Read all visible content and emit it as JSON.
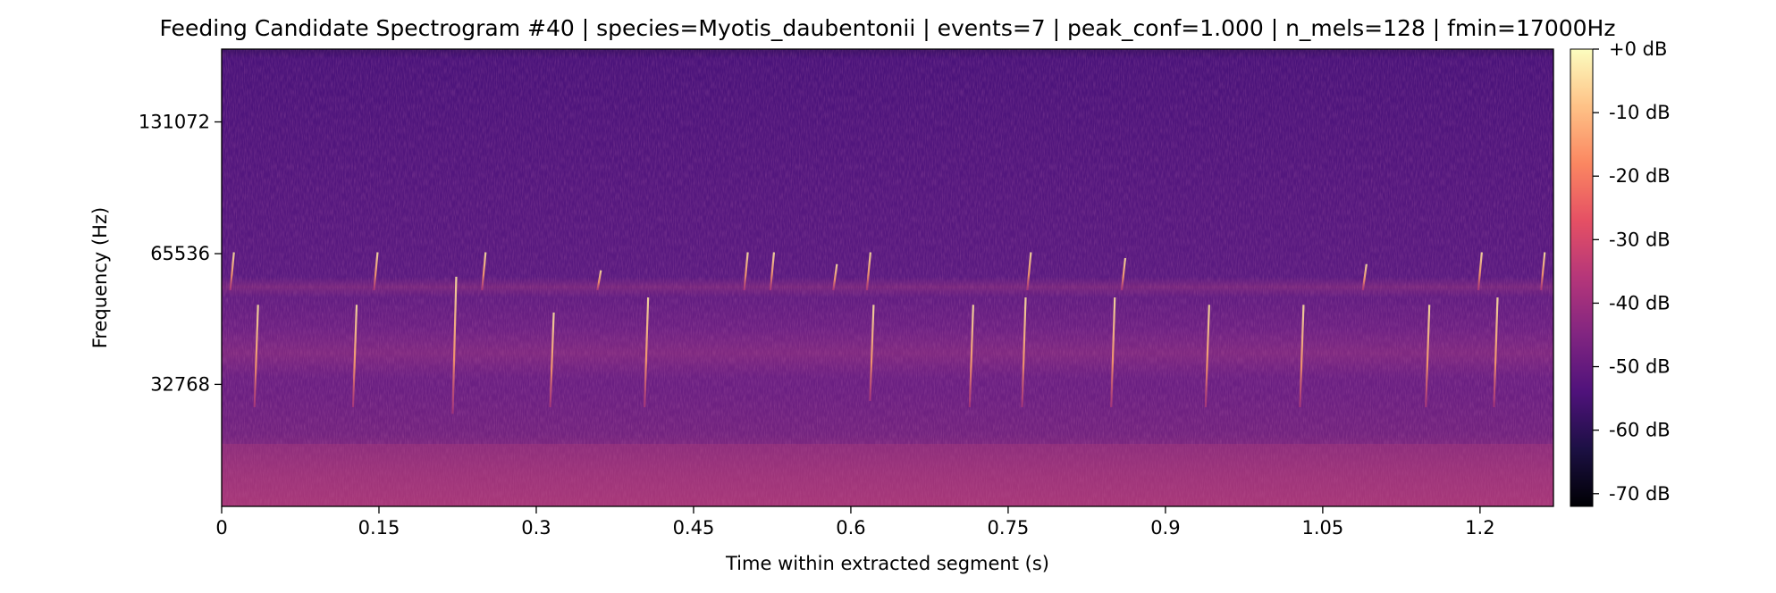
{
  "chart_data": {
    "type": "heatmap",
    "title": "Feeding Candidate Spectrogram #40 | species=Myotis_daubentonii | events=7 | peak_conf=1.000 | n_mels=128 | fmin=17000Hz",
    "xlabel": "Time within extracted segment (s)",
    "ylabel": "Frequency (Hz)",
    "xlim": [
      0,
      1.27
    ],
    "x_ticks": [
      0,
      0.15,
      0.3,
      0.45,
      0.6,
      0.75,
      0.9,
      1.05,
      1.2
    ],
    "x_tick_labels": [
      "0",
      "0.15",
      "0.3",
      "0.45",
      "0.6",
      "0.75",
      "0.9",
      "1.05",
      "1.2"
    ],
    "y_scale": "mel",
    "ylim": [
      17000,
      192000
    ],
    "y_ticks": [
      32768,
      65536,
      131072
    ],
    "y_tick_labels": [
      "32768",
      "65536",
      "131072"
    ],
    "colormap": "magma",
    "colorbar": {
      "range_db": [
        -72,
        0
      ],
      "ticks": [
        0,
        -10,
        -20,
        -30,
        -40,
        -50,
        -60,
        -70
      ],
      "tick_labels": [
        "+0 dB",
        "-10 dB",
        "-20 dB",
        "-30 dB",
        "-40 dB",
        "-50 dB",
        "-60 dB",
        "-70 dB"
      ]
    },
    "call_sweeps_approx": [
      {
        "t": 0.01,
        "f_start": 66000,
        "f_end": 54000
      },
      {
        "t": 0.033,
        "f_start": 50000,
        "f_end": 29000
      },
      {
        "t": 0.127,
        "f_start": 50000,
        "f_end": 29000
      },
      {
        "t": 0.147,
        "f_start": 66000,
        "f_end": 54000
      },
      {
        "t": 0.222,
        "f_start": 58000,
        "f_end": 28000
      },
      {
        "t": 0.25,
        "f_start": 66000,
        "f_end": 54000
      },
      {
        "t": 0.315,
        "f_start": 48000,
        "f_end": 29000
      },
      {
        "t": 0.36,
        "f_start": 60000,
        "f_end": 54000
      },
      {
        "t": 0.405,
        "f_start": 52000,
        "f_end": 29000
      },
      {
        "t": 0.5,
        "f_start": 66000,
        "f_end": 54000
      },
      {
        "t": 0.525,
        "f_start": 66000,
        "f_end": 54000
      },
      {
        "t": 0.585,
        "f_start": 62000,
        "f_end": 54000
      },
      {
        "t": 0.617,
        "f_start": 66000,
        "f_end": 54000
      },
      {
        "t": 0.62,
        "f_start": 50000,
        "f_end": 30000
      },
      {
        "t": 0.715,
        "f_start": 50000,
        "f_end": 29000
      },
      {
        "t": 0.77,
        "f_start": 66000,
        "f_end": 54000
      },
      {
        "t": 0.765,
        "f_start": 52000,
        "f_end": 29000
      },
      {
        "t": 0.85,
        "f_start": 52000,
        "f_end": 29000
      },
      {
        "t": 0.86,
        "f_start": 64000,
        "f_end": 54000
      },
      {
        "t": 0.94,
        "f_start": 50000,
        "f_end": 29000
      },
      {
        "t": 1.03,
        "f_start": 50000,
        "f_end": 29000
      },
      {
        "t": 1.09,
        "f_start": 62000,
        "f_end": 54000
      },
      {
        "t": 1.15,
        "f_start": 50000,
        "f_end": 29000
      },
      {
        "t": 1.2,
        "f_start": 66000,
        "f_end": 54000
      },
      {
        "t": 1.215,
        "f_start": 52000,
        "f_end": 29000
      },
      {
        "t": 1.26,
        "f_start": 66000,
        "f_end": 54000
      }
    ]
  }
}
